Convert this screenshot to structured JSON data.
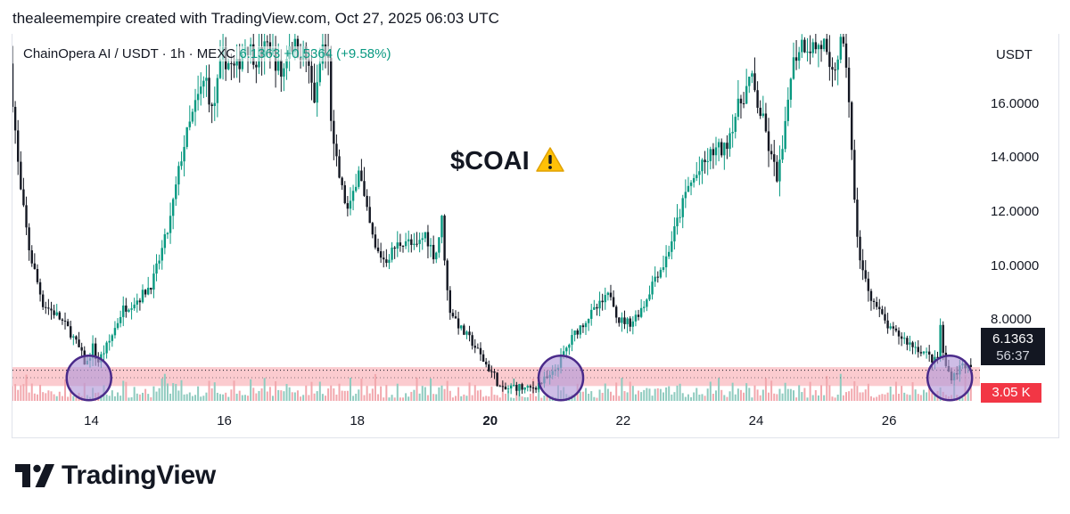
{
  "attribution": "thealeemempire created with TradingView.com, Oct 27, 2025 06:03 UTC",
  "legend": {
    "symbol": "ChainOpera AI / USDT · 1h · MEXC",
    "last": "6.1363",
    "change": "+0.5364 (+9.58%)"
  },
  "price_axis": {
    "unit": "USDT"
  },
  "annotation": {
    "text": "$COAI",
    "icon": "warning-icon"
  },
  "badges": {
    "price": "6.1363",
    "countdown": "56:37",
    "volume": "3.05 K"
  },
  "branding": {
    "logo_text": "TradingView",
    "logo_icon": "tradingview-logo-icon"
  },
  "colors": {
    "up": "#089981",
    "down": "#131722",
    "zone": "#f7a1a8",
    "circle_stroke": "#4a2a8a",
    "circle_fill": "#b49ad8",
    "vol_up": "#8fcbbf",
    "vol_down": "#f2a7ad"
  },
  "chart_data": {
    "type": "candlestick",
    "y_unit": "USDT",
    "ylim": [
      5.0,
      18.6
    ],
    "yticks": [
      8,
      10,
      12,
      14,
      16
    ],
    "ytick_labels": [
      "8.0000",
      "10.0000",
      "12.0000",
      "14.0000",
      "16.0000"
    ],
    "xticks": [
      {
        "label": "14",
        "day": 14,
        "bold": false
      },
      {
        "label": "16",
        "day": 16,
        "bold": false
      },
      {
        "label": "18",
        "day": 18,
        "bold": false
      },
      {
        "label": "20",
        "day": 20,
        "bold": true
      },
      {
        "label": "22",
        "day": 22,
        "bold": false
      },
      {
        "label": "24",
        "day": 24,
        "bold": false
      },
      {
        "label": "26",
        "day": 26,
        "bold": false
      }
    ],
    "xlim_days": [
      12.8,
      27.3
    ],
    "last_price": 6.1363,
    "support_zone": [
      5.55,
      6.25
    ],
    "circled_days": [
      13.95,
      21.05,
      26.9
    ],
    "circle_price": 5.85,
    "price_path": [
      [
        12.8,
        17.5
      ],
      [
        12.95,
        13.0
      ],
      [
        13.1,
        10.5
      ],
      [
        13.3,
        8.6
      ],
      [
        13.5,
        8.2
      ],
      [
        13.7,
        7.6
      ],
      [
        13.85,
        6.9
      ],
      [
        13.95,
        6.3
      ],
      [
        14.05,
        7.0
      ],
      [
        14.12,
        6.4
      ],
      [
        14.3,
        7.2
      ],
      [
        14.5,
        8.4
      ],
      [
        14.75,
        8.8
      ],
      [
        14.95,
        9.4
      ],
      [
        15.2,
        11.5
      ],
      [
        15.4,
        14.3
      ],
      [
        15.6,
        16.0
      ],
      [
        15.75,
        17.0
      ],
      [
        15.85,
        15.6
      ],
      [
        16.0,
        17.8
      ],
      [
        16.2,
        17.2
      ],
      [
        16.35,
        18.3
      ],
      [
        16.5,
        17.7
      ],
      [
        16.7,
        18.2
      ],
      [
        16.9,
        17.0
      ],
      [
        17.0,
        18.3
      ],
      [
        17.25,
        17.8
      ],
      [
        17.4,
        16.0
      ],
      [
        17.5,
        18.2
      ],
      [
        17.6,
        17.5
      ],
      [
        17.65,
        14.6
      ],
      [
        17.8,
        12.8
      ],
      [
        17.9,
        11.9
      ],
      [
        18.05,
        13.7
      ],
      [
        18.15,
        12.2
      ],
      [
        18.3,
        10.6
      ],
      [
        18.45,
        10.2
      ],
      [
        18.6,
        10.7
      ],
      [
        18.75,
        11.0
      ],
      [
        18.9,
        10.6
      ],
      [
        19.05,
        11.2
      ],
      [
        19.2,
        10.3
      ],
      [
        19.3,
        11.7
      ],
      [
        19.4,
        8.5
      ],
      [
        19.6,
        7.6
      ],
      [
        19.75,
        7.2
      ],
      [
        19.95,
        6.4
      ],
      [
        20.1,
        5.9
      ],
      [
        20.2,
        5.35
      ],
      [
        20.4,
        5.55
      ],
      [
        20.6,
        5.4
      ],
      [
        20.8,
        5.7
      ],
      [
        20.95,
        5.9
      ],
      [
        21.1,
        6.6
      ],
      [
        21.3,
        7.5
      ],
      [
        21.5,
        8.1
      ],
      [
        21.7,
        8.6
      ],
      [
        21.85,
        9.0
      ],
      [
        21.95,
        8.0
      ],
      [
        22.15,
        7.9
      ],
      [
        22.35,
        8.6
      ],
      [
        22.5,
        9.6
      ],
      [
        22.65,
        10.1
      ],
      [
        22.8,
        11.3
      ],
      [
        23.0,
        12.9
      ],
      [
        23.2,
        13.6
      ],
      [
        23.4,
        14.3
      ],
      [
        23.55,
        14.3
      ],
      [
        23.7,
        15.5
      ],
      [
        23.85,
        16.4
      ],
      [
        23.95,
        17.0
      ],
      [
        24.05,
        16.0
      ],
      [
        24.15,
        15.2
      ],
      [
        24.25,
        14.0
      ],
      [
        24.35,
        13.3
      ],
      [
        24.45,
        14.6
      ],
      [
        24.55,
        17.3
      ],
      [
        24.7,
        18.3
      ],
      [
        24.9,
        18.1
      ],
      [
        25.05,
        18.2
      ],
      [
        25.15,
        16.8
      ],
      [
        25.3,
        18.2
      ],
      [
        25.4,
        17.4
      ],
      [
        25.5,
        12.5
      ],
      [
        25.6,
        10.0
      ],
      [
        25.75,
        8.9
      ],
      [
        25.9,
        8.2
      ],
      [
        26.05,
        7.6
      ],
      [
        26.2,
        7.4
      ],
      [
        26.35,
        7.1
      ],
      [
        26.5,
        6.9
      ],
      [
        26.65,
        6.6
      ],
      [
        26.75,
        6.4
      ],
      [
        26.8,
        7.8
      ],
      [
        26.85,
        6.5
      ],
      [
        26.95,
        5.9
      ],
      [
        27.05,
        6.1
      ],
      [
        27.15,
        6.4
      ],
      [
        27.25,
        6.14
      ]
    ]
  }
}
